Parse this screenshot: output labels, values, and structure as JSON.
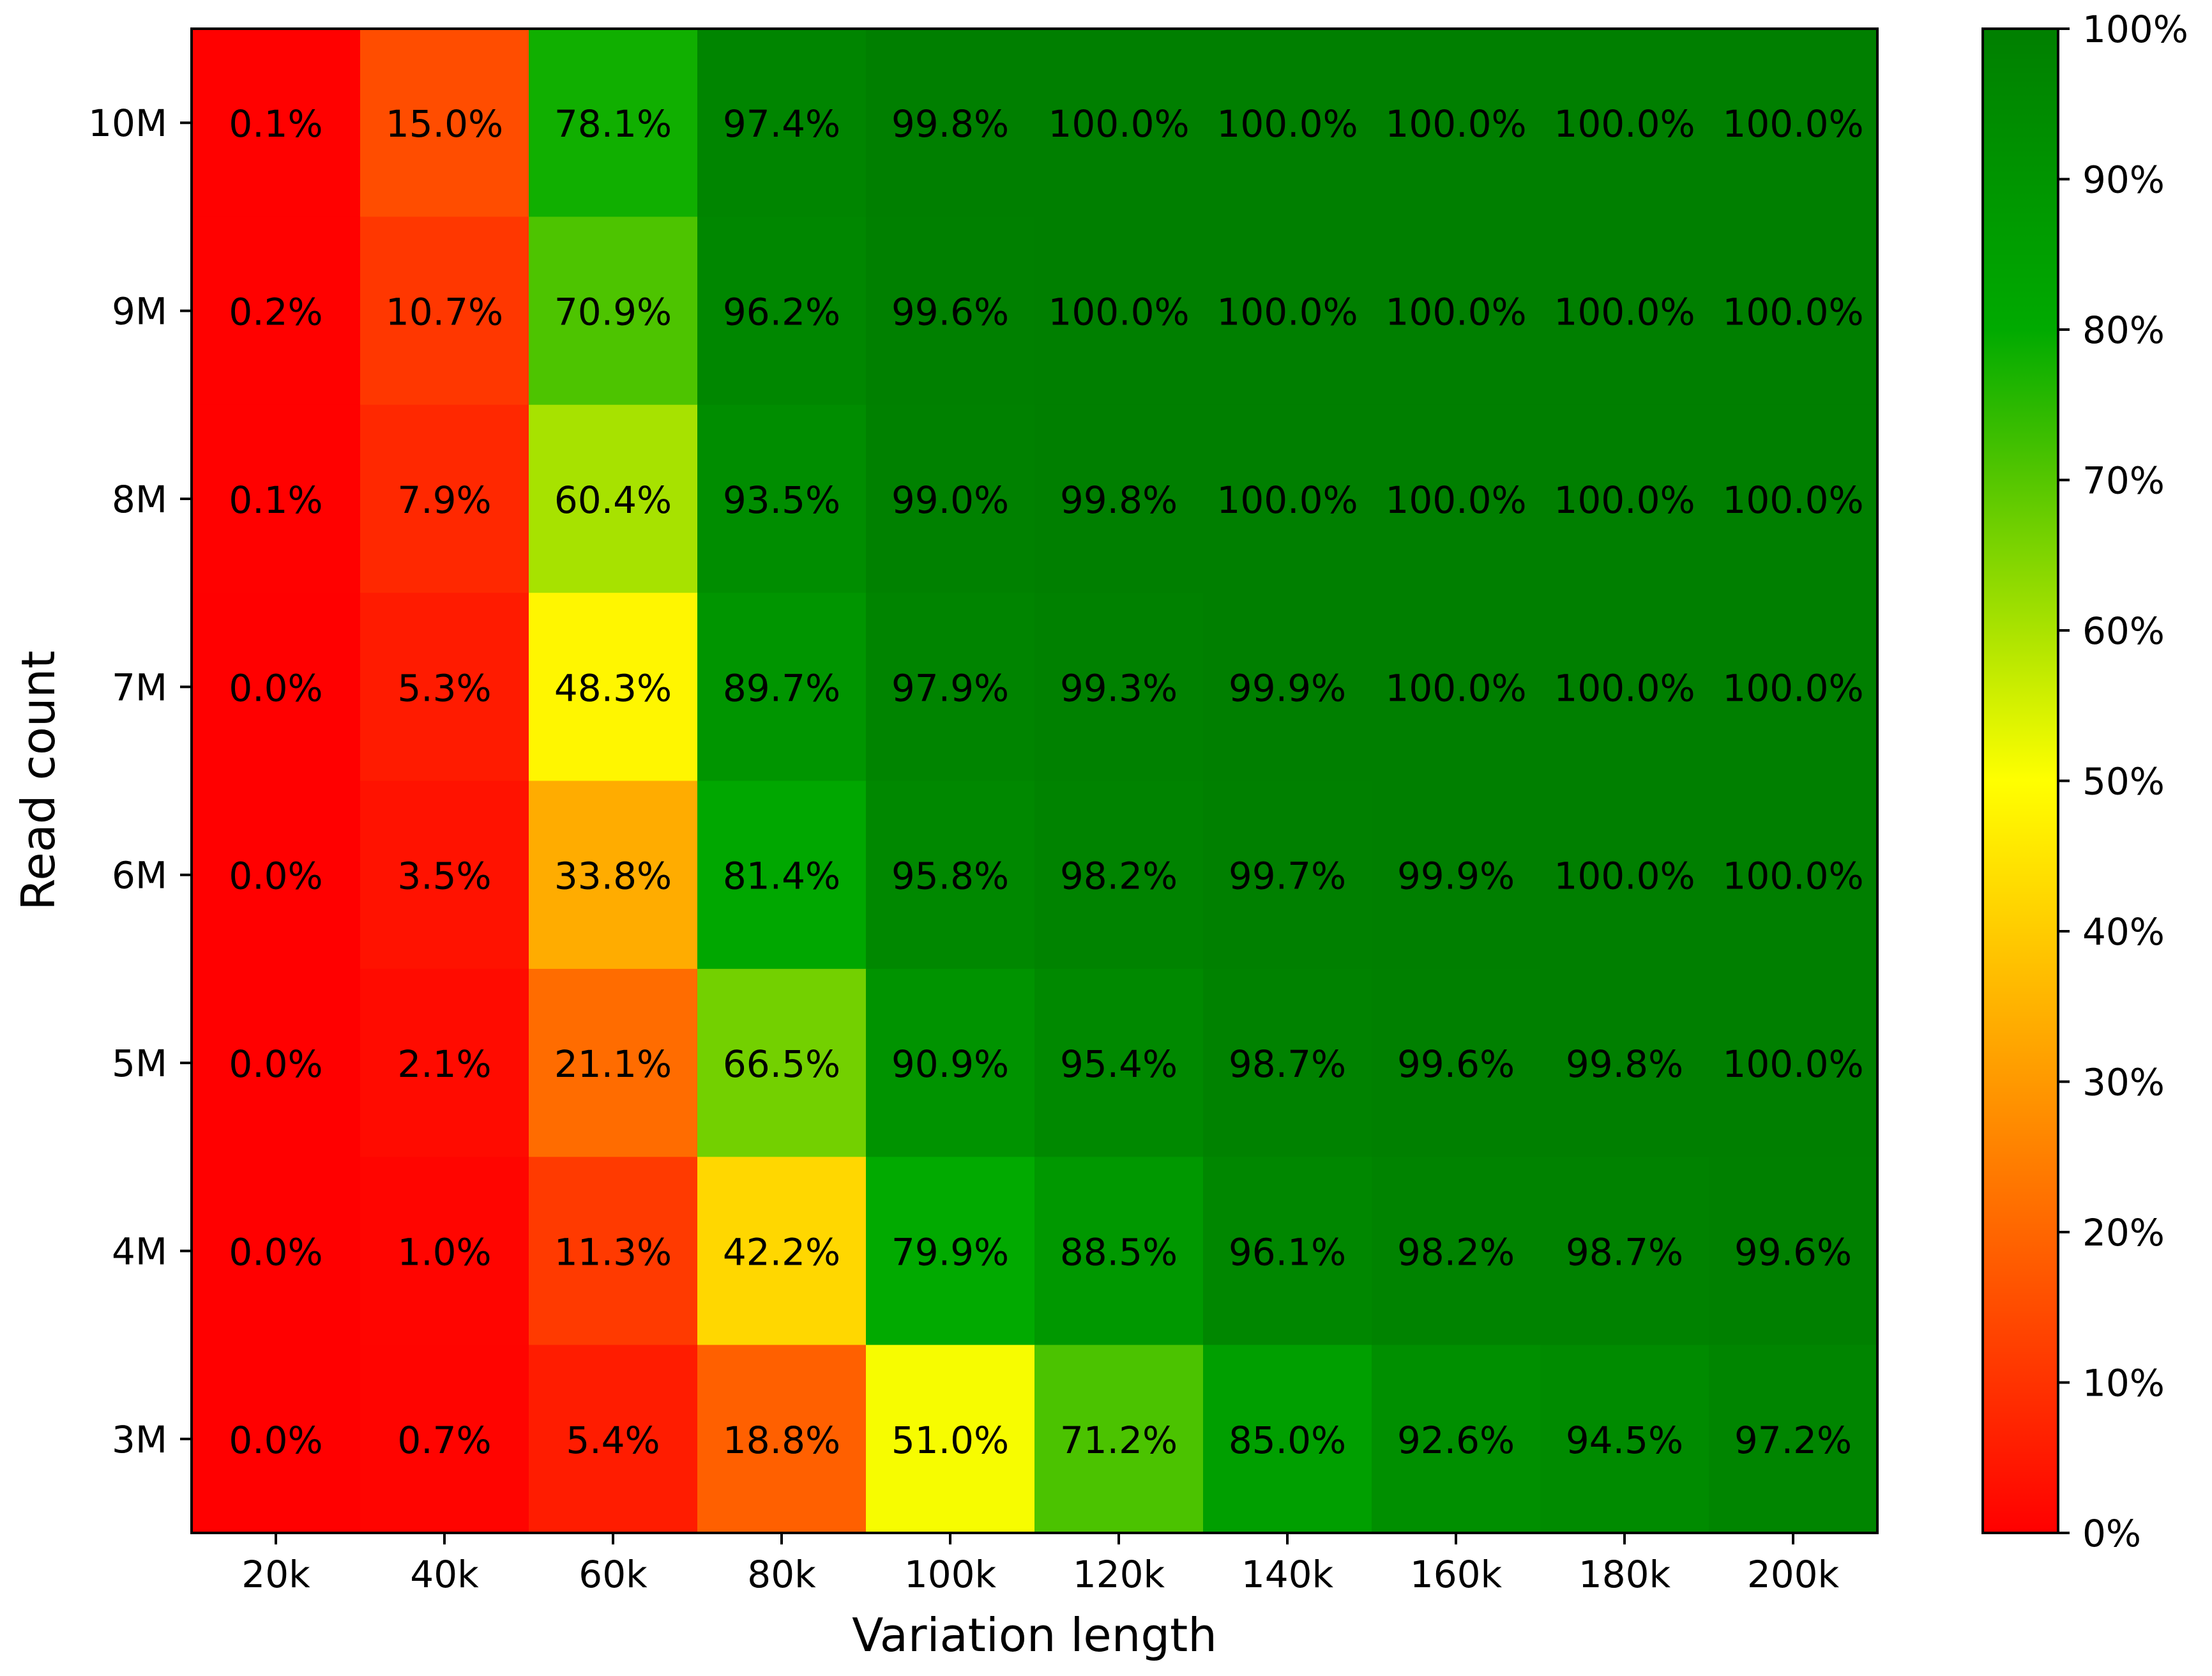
{
  "chart_data": {
    "type": "heatmap",
    "title": "",
    "xlabel": "Variation length",
    "ylabel": "Read count",
    "x_categories": [
      "20k",
      "40k",
      "60k",
      "80k",
      "100k",
      "120k",
      "140k",
      "160k",
      "180k",
      "200k"
    ],
    "y_categories": [
      "10M",
      "9M",
      "8M",
      "7M",
      "6M",
      "5M",
      "4M",
      "3M"
    ],
    "values": [
      [
        0.1,
        15.0,
        78.1,
        97.4,
        99.8,
        100.0,
        100.0,
        100.0,
        100.0,
        100.0
      ],
      [
        0.2,
        10.7,
        70.9,
        96.2,
        99.6,
        100.0,
        100.0,
        100.0,
        100.0,
        100.0
      ],
      [
        0.1,
        7.9,
        60.4,
        93.5,
        99.0,
        99.8,
        100.0,
        100.0,
        100.0,
        100.0
      ],
      [
        0.0,
        5.3,
        48.3,
        89.7,
        97.9,
        99.3,
        99.9,
        100.0,
        100.0,
        100.0
      ],
      [
        0.0,
        3.5,
        33.8,
        81.4,
        95.8,
        98.2,
        99.7,
        99.9,
        100.0,
        100.0
      ],
      [
        0.0,
        2.1,
        21.1,
        66.5,
        90.9,
        95.4,
        98.7,
        99.6,
        99.8,
        100.0
      ],
      [
        0.0,
        1.0,
        11.3,
        42.2,
        79.9,
        88.5,
        96.1,
        98.2,
        98.7,
        99.6
      ],
      [
        0.0,
        0.7,
        5.4,
        18.8,
        51.0,
        71.2,
        85.0,
        92.6,
        94.5,
        97.2
      ]
    ],
    "cell_labels": [
      [
        "0.1%",
        "15.0%",
        "78.1%",
        "97.4%",
        "99.8%",
        "100.0%",
        "100.0%",
        "100.0%",
        "100.0%",
        "100.0%"
      ],
      [
        "0.2%",
        "10.7%",
        "70.9%",
        "96.2%",
        "99.6%",
        "100.0%",
        "100.0%",
        "100.0%",
        "100.0%",
        "100.0%"
      ],
      [
        "0.1%",
        "7.9%",
        "60.4%",
        "93.5%",
        "99.0%",
        "99.8%",
        "100.0%",
        "100.0%",
        "100.0%",
        "100.0%"
      ],
      [
        "0.0%",
        "5.3%",
        "48.3%",
        "89.7%",
        "97.9%",
        "99.3%",
        "99.9%",
        "100.0%",
        "100.0%",
        "100.0%"
      ],
      [
        "0.0%",
        "3.5%",
        "33.8%",
        "81.4%",
        "95.8%",
        "98.2%",
        "99.7%",
        "99.9%",
        "100.0%",
        "100.0%"
      ],
      [
        "0.0%",
        "2.1%",
        "21.1%",
        "66.5%",
        "90.9%",
        "95.4%",
        "98.7%",
        "99.6%",
        "99.8%",
        "100.0%"
      ],
      [
        "0.0%",
        "1.0%",
        "11.3%",
        "42.2%",
        "79.9%",
        "88.5%",
        "96.1%",
        "98.2%",
        "98.7%",
        "99.6%"
      ],
      [
        "0.0%",
        "0.7%",
        "5.4%",
        "18.8%",
        "51.0%",
        "71.2%",
        "85.0%",
        "92.6%",
        "94.5%",
        "97.2%"
      ]
    ],
    "colorbar": {
      "range": [
        0,
        100
      ],
      "ticks": [
        0,
        10,
        20,
        30,
        40,
        50,
        60,
        70,
        80,
        90,
        100
      ],
      "tick_labels": [
        "0%",
        "10%",
        "20%",
        "30%",
        "40%",
        "50%",
        "60%",
        "70%",
        "80%",
        "90%",
        "100%"
      ],
      "colormap": [
        {
          "value": 0,
          "color": "#ff0000"
        },
        {
          "value": 50,
          "color": "#ffff00"
        },
        {
          "value": 80,
          "color": "#00aa00"
        },
        {
          "value": 100,
          "color": "#007f00"
        }
      ]
    },
    "grid": false,
    "legend": "colorbar-right"
  }
}
